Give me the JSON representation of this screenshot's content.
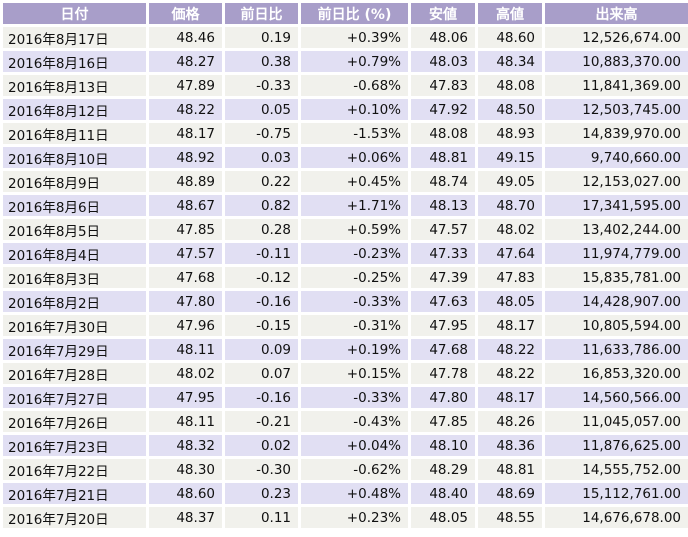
{
  "table": {
    "headers": [
      "日付",
      "価格",
      "前日比",
      "前日比 (%)",
      "安値",
      "高値",
      "出来高"
    ],
    "rows": [
      [
        "2016年8月17日",
        "48.46",
        "0.19",
        "+0.39%",
        "48.06",
        "48.60",
        "12,526,674.00"
      ],
      [
        "2016年8月16日",
        "48.27",
        "0.38",
        "+0.79%",
        "48.03",
        "48.34",
        "10,883,370.00"
      ],
      [
        "2016年8月13日",
        "47.89",
        "-0.33",
        "-0.68%",
        "47.83",
        "48.08",
        "11,841,369.00"
      ],
      [
        "2016年8月12日",
        "48.22",
        "0.05",
        "+0.10%",
        "47.92",
        "48.50",
        "12,503,745.00"
      ],
      [
        "2016年8月11日",
        "48.17",
        "-0.75",
        "-1.53%",
        "48.08",
        "48.93",
        "14,839,970.00"
      ],
      [
        "2016年8月10日",
        "48.92",
        "0.03",
        "+0.06%",
        "48.81",
        "49.15",
        "9,740,660.00"
      ],
      [
        "2016年8月9日",
        "48.89",
        "0.22",
        "+0.45%",
        "48.74",
        "49.05",
        "12,153,027.00"
      ],
      [
        "2016年8月6日",
        "48.67",
        "0.82",
        "+1.71%",
        "48.13",
        "48.70",
        "17,341,595.00"
      ],
      [
        "2016年8月5日",
        "47.85",
        "0.28",
        "+0.59%",
        "47.57",
        "48.02",
        "13,402,244.00"
      ],
      [
        "2016年8月4日",
        "47.57",
        "-0.11",
        "-0.23%",
        "47.33",
        "47.64",
        "11,974,779.00"
      ],
      [
        "2016年8月3日",
        "47.68",
        "-0.12",
        "-0.25%",
        "47.39",
        "47.83",
        "15,835,781.00"
      ],
      [
        "2016年8月2日",
        "47.80",
        "-0.16",
        "-0.33%",
        "47.63",
        "48.05",
        "14,428,907.00"
      ],
      [
        "2016年7月30日",
        "47.96",
        "-0.15",
        "-0.31%",
        "47.95",
        "48.17",
        "10,805,594.00"
      ],
      [
        "2016年7月29日",
        "48.11",
        "0.09",
        "+0.19%",
        "47.68",
        "48.22",
        "11,633,786.00"
      ],
      [
        "2016年7月28日",
        "48.02",
        "0.07",
        "+0.15%",
        "47.78",
        "48.22",
        "16,853,320.00"
      ],
      [
        "2016年7月27日",
        "47.95",
        "-0.16",
        "-0.33%",
        "47.80",
        "48.17",
        "14,560,566.00"
      ],
      [
        "2016年7月26日",
        "48.11",
        "-0.21",
        "-0.43%",
        "47.85",
        "48.26",
        "11,045,057.00"
      ],
      [
        "2016年7月23日",
        "48.32",
        "0.02",
        "+0.04%",
        "48.10",
        "48.36",
        "11,876,625.00"
      ],
      [
        "2016年7月22日",
        "48.30",
        "-0.30",
        "-0.62%",
        "48.29",
        "48.81",
        "14,555,752.00"
      ],
      [
        "2016年7月21日",
        "48.60",
        "0.23",
        "+0.48%",
        "48.40",
        "48.69",
        "15,112,761.00"
      ],
      [
        "2016年7月20日",
        "48.37",
        "0.11",
        "+0.23%",
        "48.05",
        "48.55",
        "14,676,678.00"
      ]
    ]
  },
  "colors": {
    "header_bg": "#a89ec9",
    "row_light": "#f1f1ec",
    "row_alt": "#e1dff3"
  }
}
